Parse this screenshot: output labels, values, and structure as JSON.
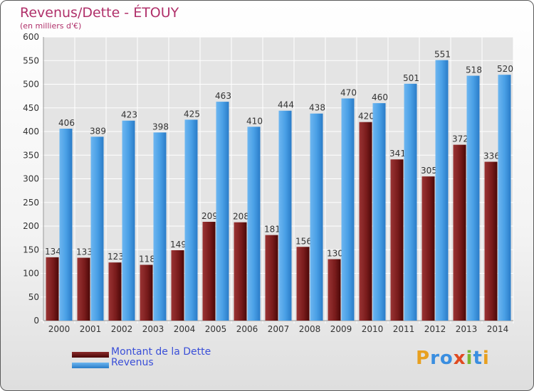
{
  "chart_data": {
    "type": "bar",
    "title": "Revenus/Dette - ÉTOUY",
    "subtitle": "(en milliers d'€)",
    "categories": [
      "2000",
      "2001",
      "2002",
      "2003",
      "2004",
      "2005",
      "2006",
      "2007",
      "2008",
      "2009",
      "2010",
      "2011",
      "2012",
      "2013",
      "2014"
    ],
    "series": [
      {
        "name": "Montant de la Dette",
        "color": "#7a1a1a",
        "values": [
          134,
          133,
          123,
          118,
          149,
          209,
          208,
          181,
          156,
          130,
          420,
          341,
          305,
          372,
          336
        ]
      },
      {
        "name": "Revenus",
        "color": "#4aa0e6",
        "values": [
          406,
          389,
          423,
          398,
          425,
          463,
          410,
          444,
          438,
          470,
          460,
          501,
          551,
          518,
          520
        ]
      }
    ],
    "ylim": [
      0,
      600
    ],
    "yticks": [
      0,
      50,
      100,
      150,
      200,
      250,
      300,
      350,
      400,
      450,
      500,
      550,
      600
    ],
    "grid": true,
    "legend_position": "bottom-left"
  },
  "branding": {
    "logo_letters": [
      "P",
      "r",
      "o",
      "x",
      "i",
      "t",
      "i"
    ],
    "logo_colors": [
      "#e8a020",
      "#3a8ee0",
      "#3a8ee0",
      "#e04a20",
      "#7ab830",
      "#3a8ee0",
      "#e8a020"
    ]
  }
}
